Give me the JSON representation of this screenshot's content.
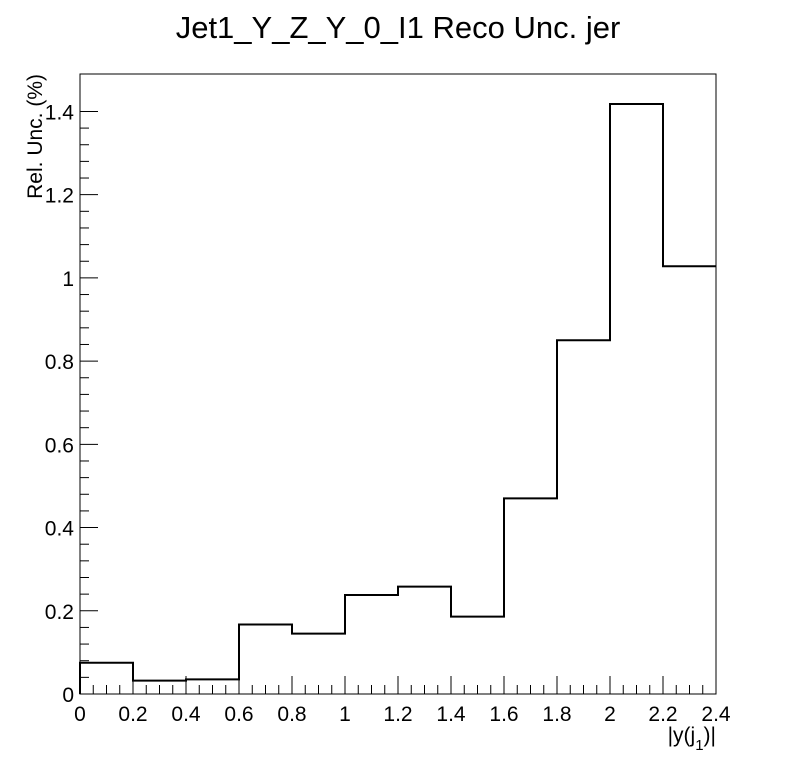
{
  "chart_data": {
    "type": "histogram",
    "title": "Jet1_Y_Z_Y_0_I1 Reco Unc. jer",
    "xlabel_main": "|y(j",
    "xlabel_sub": "1",
    "xlabel_end": ")|",
    "ylabel": "Rel. Unc. (%)",
    "bin_edges": [
      0,
      0.2,
      0.4,
      0.6,
      0.8,
      1.0,
      1.2,
      1.4,
      1.6,
      1.8,
      2.0,
      2.2,
      2.4
    ],
    "values": [
      0.075,
      0.032,
      0.035,
      0.167,
      0.145,
      0.238,
      0.258,
      0.186,
      0.47,
      0.85,
      1.418,
      1.028
    ],
    "xlim": [
      0,
      2.4
    ],
    "ylim": [
      0,
      1.49
    ],
    "x_ticks": [
      "0",
      "0.2",
      "0.4",
      "0.6",
      "0.8",
      "1",
      "1.2",
      "1.4",
      "1.6",
      "1.8",
      "2",
      "2.2",
      "2.4"
    ],
    "y_ticks": [
      "0",
      "0.2",
      "0.4",
      "0.6",
      "0.8",
      "1",
      "1.2",
      "1.4"
    ],
    "grid": false,
    "legend": "none",
    "line_color": "#000000"
  }
}
